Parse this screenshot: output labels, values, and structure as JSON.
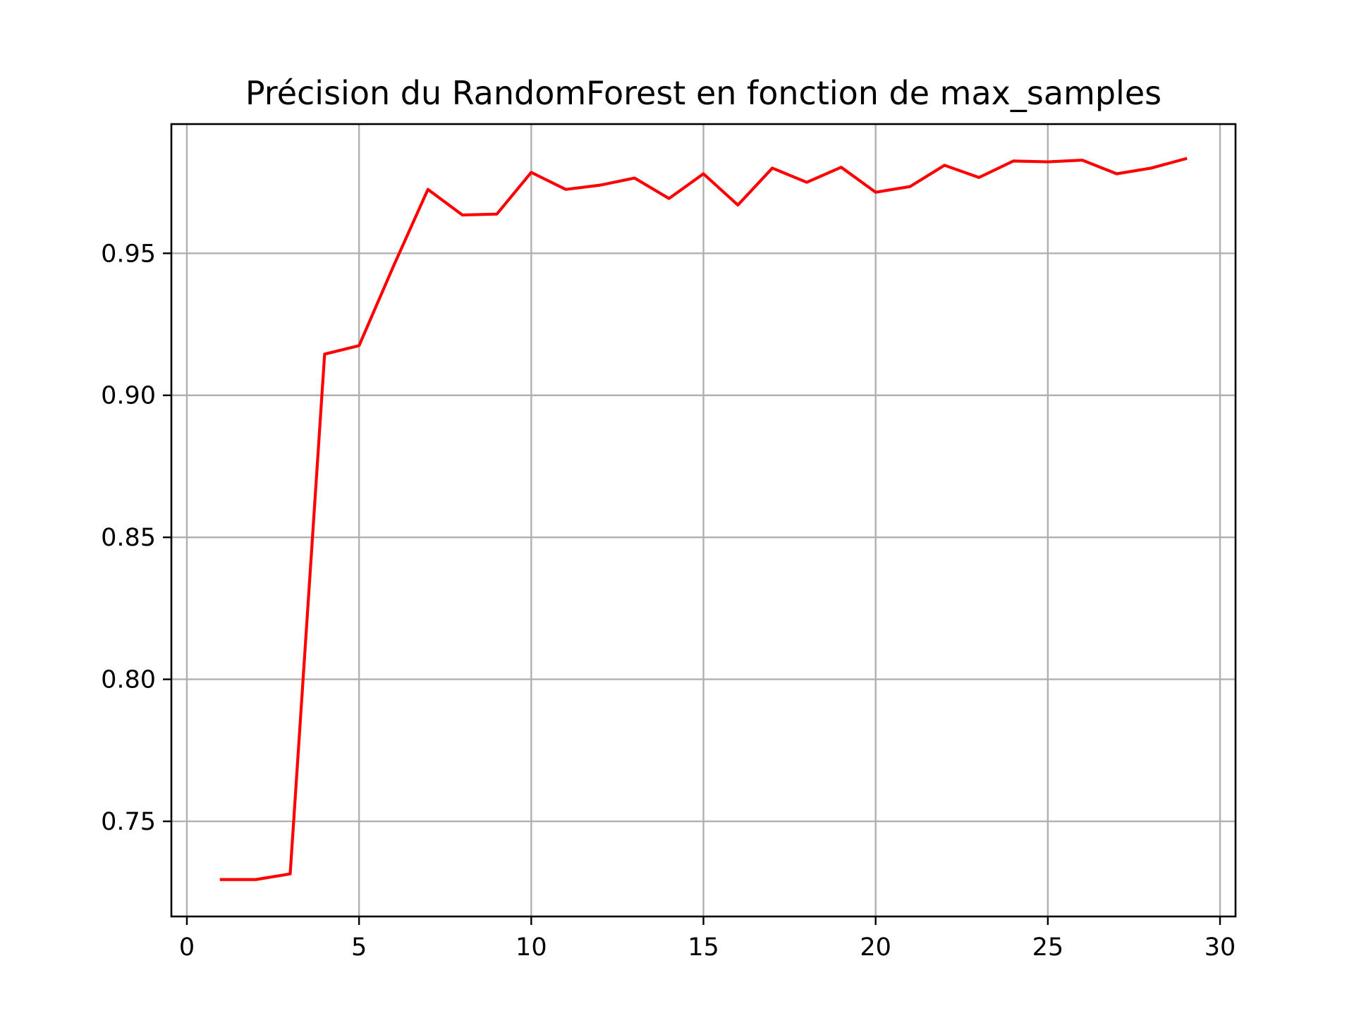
{
  "chart_data": {
    "type": "line",
    "title": "Précision du RandomForest en fonction de max_samples",
    "xlabel": "",
    "ylabel": "",
    "xlim": [
      -0.45,
      30.45
    ],
    "ylim": [
      0.7165,
      0.9955
    ],
    "xticks": [
      0,
      5,
      10,
      15,
      20,
      25,
      30
    ],
    "xtick_labels": [
      "0",
      "5",
      "10",
      "15",
      "20",
      "25",
      "30"
    ],
    "yticks": [
      0.75,
      0.8,
      0.85,
      0.9,
      0.95
    ],
    "ytick_labels": [
      "0.75",
      "0.80",
      "0.85",
      "0.90",
      "0.95"
    ],
    "grid": true,
    "legend": "none",
    "series": [
      {
        "color": "#ff0000",
        "x": [
          1,
          2,
          3,
          4,
          5,
          6,
          7,
          8,
          9,
          10,
          11,
          12,
          13,
          14,
          15,
          16,
          17,
          18,
          19,
          20,
          21,
          22,
          23,
          24,
          25,
          26,
          27,
          28,
          29
        ],
        "y": [
          0.7295,
          0.7295,
          0.7315,
          0.9145,
          0.9175,
          0.9455,
          0.9725,
          0.9635,
          0.9638,
          0.9785,
          0.9725,
          0.974,
          0.9765,
          0.9693,
          0.978,
          0.967,
          0.98,
          0.975,
          0.9803,
          0.9715,
          0.9735,
          0.981,
          0.9767,
          0.9825,
          0.9822,
          0.9828,
          0.978,
          0.98,
          0.9833
        ]
      }
    ]
  }
}
